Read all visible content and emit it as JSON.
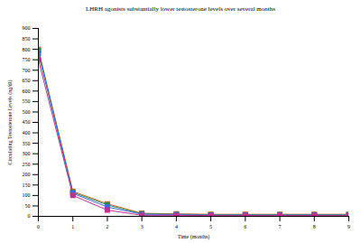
{
  "chart_data": {
    "type": "line",
    "title": "LHRH agonists substantially lower testosterone levels over several months",
    "x_label": "Time (months)",
    "y_label": "Circulating Testosterone Levels (ng/dl)",
    "x": [
      0,
      1,
      2,
      3,
      4,
      5,
      6,
      7,
      8,
      9
    ],
    "series": [
      {
        "color": "#d2691e",
        "values": [
          800,
          120,
          60,
          15,
          12,
          10,
          10,
          10,
          10,
          10
        ]
      },
      {
        "color": "#2e8b57",
        "values": [
          795,
          115,
          55,
          12,
          10,
          8,
          8,
          8,
          8,
          8
        ]
      },
      {
        "color": "#4169e1",
        "values": [
          780,
          110,
          45,
          10,
          8,
          6,
          6,
          6,
          6,
          6
        ]
      },
      {
        "color": "#c0308f",
        "values": [
          750,
          100,
          30,
          5,
          5,
          4,
          4,
          4,
          4,
          4
        ]
      }
    ],
    "xlim": [
      0,
      9
    ],
    "xticks": [
      0,
      1,
      2,
      3,
      4,
      5,
      6,
      7,
      8,
      9
    ],
    "ylim": [
      0,
      900
    ],
    "yticks": [
      0,
      50,
      100,
      150,
      200,
      250,
      300,
      350,
      400,
      450,
      500,
      550,
      600,
      650,
      700,
      750,
      800,
      850,
      900
    ],
    "grid": false,
    "marker": "square",
    "line_style": "solid"
  }
}
